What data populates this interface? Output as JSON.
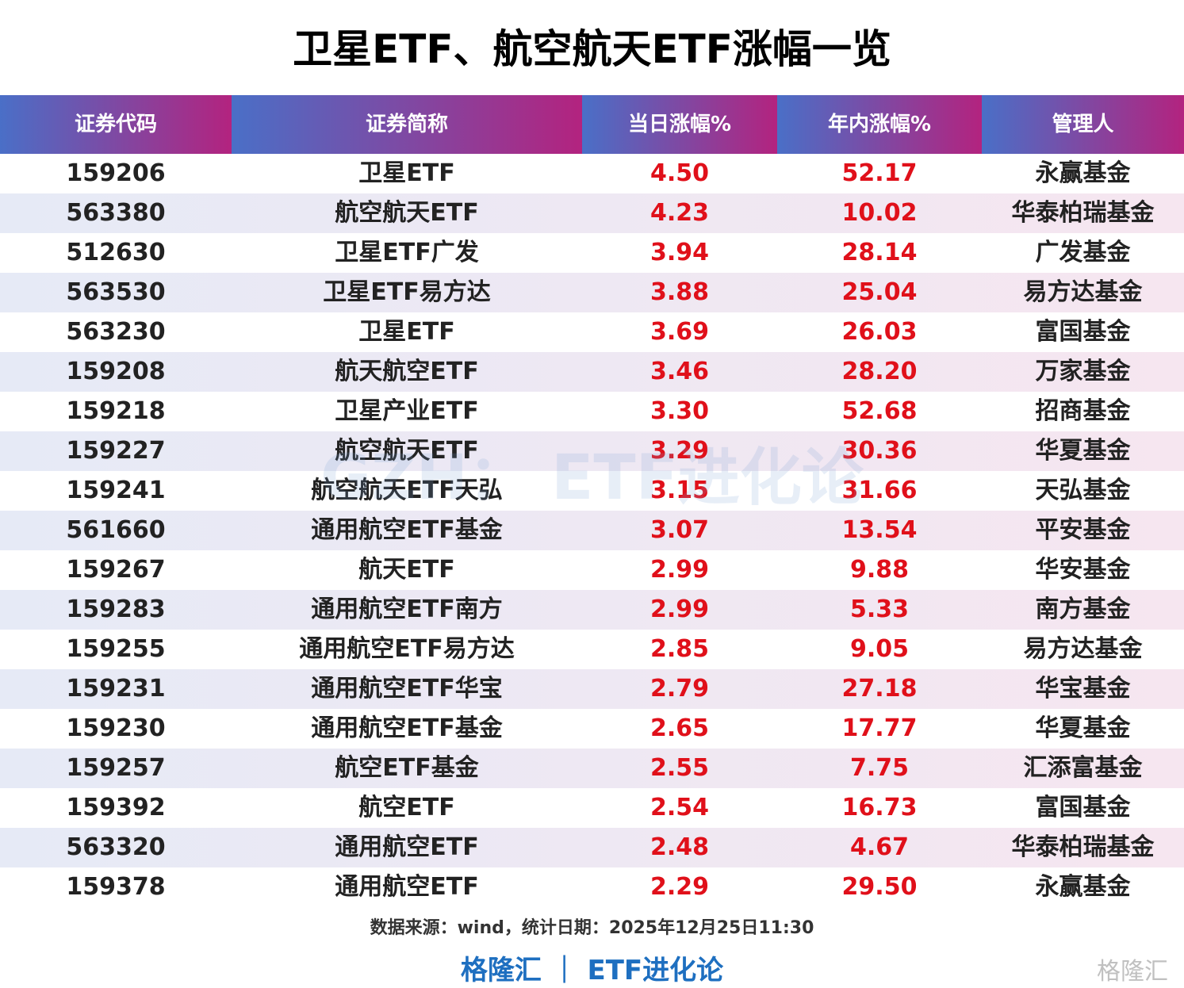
{
  "header": {
    "title": "卫星ETF、航空航天ETF涨幅一览"
  },
  "table": {
    "columns": [
      "证券代码",
      "证券简称",
      "当日涨幅%",
      "年内涨幅%",
      "管理人"
    ],
    "rows": [
      [
        "159206",
        "卫星ETF",
        "4.50",
        "52.17",
        "永赢基金"
      ],
      [
        "563380",
        "航空航天ETF",
        "4.23",
        "10.02",
        "华泰柏瑞基金"
      ],
      [
        "512630",
        "卫星ETF广发",
        "3.94",
        "28.14",
        "广发基金"
      ],
      [
        "563530",
        "卫星ETF易方达",
        "3.88",
        "25.04",
        "易方达基金"
      ],
      [
        "563230",
        "卫星ETF",
        "3.69",
        "26.03",
        "富国基金"
      ],
      [
        "159208",
        "航天航空ETF",
        "3.46",
        "28.20",
        "万家基金"
      ],
      [
        "159218",
        "卫星产业ETF",
        "3.30",
        "52.68",
        "招商基金"
      ],
      [
        "159227",
        "航空航天ETF",
        "3.29",
        "30.36",
        "华夏基金"
      ],
      [
        "159241",
        "航空航天ETF天弘",
        "3.15",
        "31.66",
        "天弘基金"
      ],
      [
        "561660",
        "通用航空ETF基金",
        "3.07",
        "13.54",
        "平安基金"
      ],
      [
        "159267",
        "航天ETF",
        "2.99",
        "9.88",
        "华安基金"
      ],
      [
        "159283",
        "通用航空ETF南方",
        "2.99",
        "5.33",
        "南方基金"
      ],
      [
        "159255",
        "通用航空ETF易方达",
        "2.85",
        "9.05",
        "易方达基金"
      ],
      [
        "159231",
        "通用航空ETF华宝",
        "2.79",
        "27.18",
        "华宝基金"
      ],
      [
        "159230",
        "通用航空ETF基金",
        "2.65",
        "17.77",
        "华夏基金"
      ],
      [
        "159257",
        "航空ETF基金",
        "2.55",
        "7.75",
        "汇添富基金"
      ],
      [
        "159392",
        "航空ETF",
        "2.54",
        "16.73",
        "富国基金"
      ],
      [
        "563320",
        "通用航空ETF",
        "2.48",
        "4.67",
        "华泰柏瑞基金"
      ],
      [
        "159378",
        "通用航空ETF",
        "2.29",
        "29.50",
        "永赢基金"
      ]
    ]
  },
  "watermark": "GZH： ETF进化论",
  "footer": {
    "source": "数据来源：wind，统计日期：2025年12月25日11:30",
    "brand": "格隆汇 ｜ ETF进化论",
    "logo": "格隆汇"
  }
}
